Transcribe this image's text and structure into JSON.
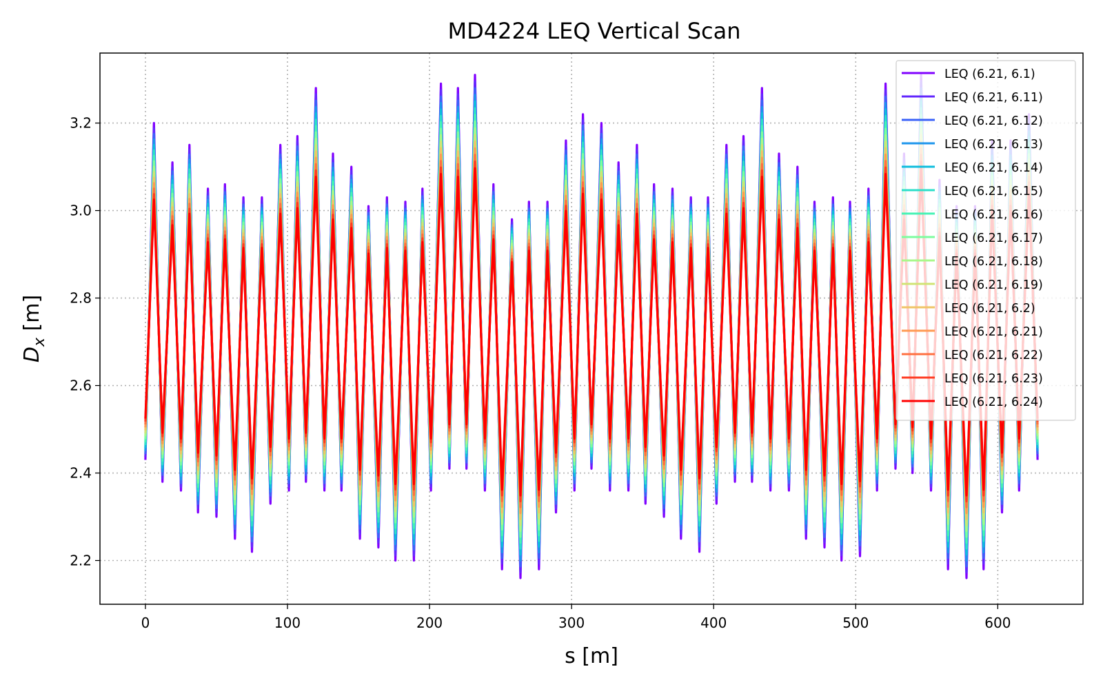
{
  "chart_data": {
    "type": "line",
    "title": "MD4224 LEQ Vertical Scan",
    "xlabel": "s [m]",
    "ylabel_main": "D",
    "ylabel_sub": "x",
    "ylabel_unit": " [m]",
    "xlim": [
      -32,
      660
    ],
    "ylim": [
      2.1,
      3.36
    ],
    "xticks": [
      0,
      100,
      200,
      300,
      400,
      500,
      600
    ],
    "xtick_labels": [
      "0",
      "100",
      "200",
      "300",
      "400",
      "500",
      "600"
    ],
    "yticks": [
      2.2,
      2.4,
      2.6,
      2.8,
      3.0,
      3.2
    ],
    "ytick_labels": [
      "2.2",
      "2.4",
      "2.6",
      "2.8",
      "3.0",
      "3.2"
    ],
    "grid": true,
    "legend_position": "top-right",
    "peaks": [
      [
        0,
        2.43
      ],
      [
        6,
        3.2
      ],
      [
        12,
        2.38
      ],
      [
        19,
        3.11
      ],
      [
        25,
        2.36
      ],
      [
        31,
        3.15
      ],
      [
        37,
        2.31
      ],
      [
        44,
        3.05
      ],
      [
        50,
        2.3
      ],
      [
        56,
        3.06
      ],
      [
        63,
        2.25
      ],
      [
        69,
        3.03
      ],
      [
        75,
        2.22
      ],
      [
        82,
        3.03
      ],
      [
        88,
        2.33
      ],
      [
        95,
        3.15
      ],
      [
        101,
        2.36
      ],
      [
        107,
        3.17
      ],
      [
        113,
        2.38
      ],
      [
        120,
        3.28
      ],
      [
        126,
        2.36
      ],
      [
        132,
        3.13
      ],
      [
        138,
        2.36
      ],
      [
        145,
        3.1
      ],
      [
        151,
        2.25
      ],
      [
        157,
        3.01
      ],
      [
        164,
        2.23
      ],
      [
        170,
        3.03
      ],
      [
        176,
        2.2
      ],
      [
        183,
        3.02
      ],
      [
        189,
        2.2
      ],
      [
        195,
        3.05
      ],
      [
        201,
        2.36
      ],
      [
        208,
        3.29
      ],
      [
        214,
        2.41
      ],
      [
        220,
        3.28
      ],
      [
        226,
        2.41
      ],
      [
        232,
        3.31
      ],
      [
        239,
        2.36
      ],
      [
        245,
        3.06
      ],
      [
        251,
        2.18
      ],
      [
        258,
        2.98
      ],
      [
        264,
        2.16
      ],
      [
        270,
        3.02
      ],
      [
        277,
        2.18
      ],
      [
        283,
        3.02
      ],
      [
        289,
        2.31
      ],
      [
        296,
        3.16
      ],
      [
        302,
        2.36
      ],
      [
        308,
        3.22
      ],
      [
        314,
        2.41
      ],
      [
        321,
        3.2
      ],
      [
        327,
        2.36
      ],
      [
        333,
        3.11
      ],
      [
        340,
        2.36
      ],
      [
        346,
        3.15
      ],
      [
        352,
        2.33
      ],
      [
        358,
        3.06
      ],
      [
        365,
        2.3
      ],
      [
        371,
        3.05
      ],
      [
        377,
        2.25
      ],
      [
        384,
        3.03
      ],
      [
        390,
        2.22
      ],
      [
        396,
        3.03
      ],
      [
        402,
        2.33
      ],
      [
        409,
        3.15
      ],
      [
        415,
        2.38
      ],
      [
        421,
        3.17
      ],
      [
        427,
        2.38
      ],
      [
        434,
        3.28
      ],
      [
        440,
        2.36
      ],
      [
        446,
        3.13
      ],
      [
        453,
        2.36
      ],
      [
        459,
        3.1
      ],
      [
        465,
        2.25
      ],
      [
        471,
        3.02
      ],
      [
        478,
        2.23
      ],
      [
        484,
        3.03
      ],
      [
        490,
        2.2
      ],
      [
        496,
        3.02
      ],
      [
        503,
        2.21
      ],
      [
        509,
        3.05
      ],
      [
        515,
        2.36
      ],
      [
        521,
        3.29
      ],
      [
        528,
        2.41
      ],
      [
        534,
        3.13
      ],
      [
        540,
        2.4
      ],
      [
        546,
        3.31
      ],
      [
        553,
        2.36
      ],
      [
        559,
        3.07
      ],
      [
        565,
        2.18
      ],
      [
        571,
        3.01
      ],
      [
        578,
        2.16
      ],
      [
        584,
        3.01
      ],
      [
        590,
        2.18
      ],
      [
        596,
        3.16
      ],
      [
        603,
        2.31
      ],
      [
        609,
        3.16
      ],
      [
        615,
        2.36
      ],
      [
        622,
        3.22
      ],
      [
        628,
        2.43
      ]
    ],
    "series": [
      {
        "name": "LEQ (6.21, 6.1)",
        "color": "#8000ff",
        "scale": 1.0
      },
      {
        "name": "LEQ (6.21, 6.11)",
        "color": "#6226fe",
        "scale": 0.975
      },
      {
        "name": "LEQ (6.21, 6.12)",
        "color": "#3a62f8",
        "scale": 0.95
      },
      {
        "name": "LEQ (6.21, 6.13)",
        "color": "#1c95ec",
        "scale": 0.925
      },
      {
        "name": "LEQ (6.21, 6.14)",
        "color": "#0ebddd",
        "scale": 0.9
      },
      {
        "name": "LEQ (6.21, 6.15)",
        "color": "#2cdfc9",
        "scale": 0.875
      },
      {
        "name": "LEQ (6.21, 6.16)",
        "color": "#46f3b4",
        "scale": 0.85
      },
      {
        "name": "LEQ (6.21, 6.17)",
        "color": "#7cfd9e",
        "scale": 0.825
      },
      {
        "name": "LEQ (6.21, 6.18)",
        "color": "#a8f889",
        "scale": 0.8
      },
      {
        "name": "LEQ (6.21, 6.19)",
        "color": "#d0e474",
        "scale": 0.775
      },
      {
        "name": "LEQ (6.21, 6.2)",
        "color": "#f0c466",
        "scale": 0.75
      },
      {
        "name": "LEQ (6.21, 6.21)",
        "color": "#ff9a52",
        "scale": 0.725
      },
      {
        "name": "LEQ (6.21, 6.22)",
        "color": "#ff7040",
        "scale": 0.7
      },
      {
        "name": "LEQ (6.21, 6.23)",
        "color": "#ff3b22",
        "scale": 0.675
      },
      {
        "name": "LEQ (6.21, 6.24)",
        "color": "#ff0000",
        "scale": 0.65
      }
    ]
  }
}
